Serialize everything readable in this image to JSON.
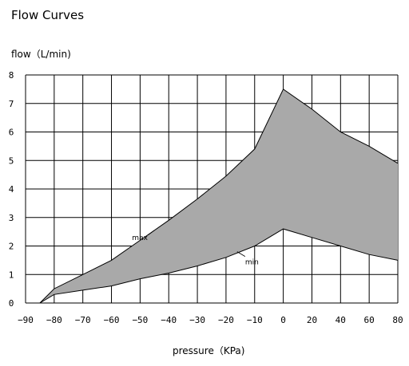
{
  "chart_data": {
    "type": "area",
    "title": "Flow Curves",
    "ylabel": "flow（L/min)",
    "xlabel": "pressure（KPa)",
    "x_ticks": [
      -90,
      -80,
      -70,
      -60,
      -50,
      -40,
      -30,
      -20,
      -10,
      0,
      20,
      40,
      60,
      80
    ],
    "y_ticks": [
      0,
      1,
      2,
      3,
      4,
      5,
      6,
      7,
      8
    ],
    "ylim": [
      0,
      8
    ],
    "grid": true,
    "fill_color": "#a9a9a9",
    "series": [
      {
        "name": "max",
        "x": [
          -85,
          -80,
          -70,
          -60,
          -50,
          -40,
          -30,
          -20,
          -10,
          0,
          20,
          40,
          60,
          80
        ],
        "y": [
          0,
          0.5,
          1.0,
          1.5,
          2.2,
          2.9,
          3.65,
          4.45,
          5.4,
          7.5,
          6.8,
          6.0,
          5.5,
          4.9
        ]
      },
      {
        "name": "min",
        "x": [
          -85,
          -80,
          -70,
          -60,
          -50,
          -40,
          -30,
          -20,
          -10,
          0,
          20,
          40,
          60,
          80
        ],
        "y": [
          0,
          0.3,
          0.45,
          0.6,
          0.85,
          1.05,
          1.3,
          1.6,
          2.0,
          2.6,
          2.3,
          2.0,
          1.7,
          1.5
        ]
      }
    ],
    "annotations": [
      {
        "text": "max",
        "series": "max",
        "at_x": -45
      },
      {
        "text": "min",
        "series": "min",
        "at_x": -15
      }
    ]
  }
}
